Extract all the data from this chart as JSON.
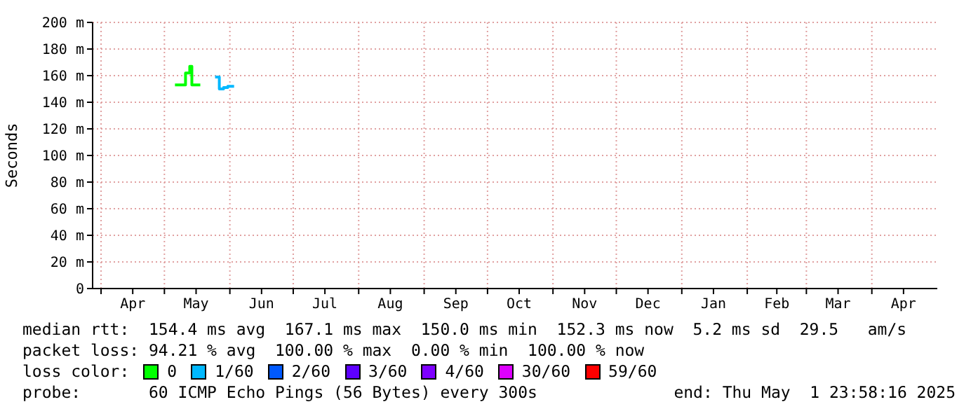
{
  "chart_data": {
    "type": "step",
    "ylabel": "Seconds",
    "x": [
      "2024-05-06",
      "2024-05-11",
      "2024-05-13",
      "2024-05-14",
      "2024-05-18",
      "2024-05-20",
      "2024-05-25",
      "2024-05-27",
      "2024-05-29",
      "2024-05-31",
      "2024-06-03"
    ],
    "series": [
      {
        "name": "0",
        "color": "#00ff00",
        "values": [
          153,
          162,
          167,
          153,
          153,
          null,
          null,
          null,
          null,
          null,
          null
        ]
      },
      {
        "name": "1/60",
        "color": "#00b8ff",
        "values": [
          null,
          null,
          null,
          null,
          null,
          null,
          159,
          150,
          151,
          152,
          152
        ]
      },
      {
        "name": "2/60",
        "color": "#0059ff",
        "values": [
          null,
          null,
          null,
          null,
          null,
          null,
          null,
          null,
          null,
          null,
          null
        ]
      },
      {
        "name": "3/60",
        "color": "#5e00ff",
        "values": [
          null,
          null,
          null,
          null,
          null,
          null,
          null,
          null,
          null,
          null,
          null
        ]
      },
      {
        "name": "4/60",
        "color": "#7e00ff",
        "values": [
          null,
          null,
          null,
          null,
          null,
          null,
          null,
          null,
          null,
          null,
          null
        ]
      },
      {
        "name": "30/60",
        "color": "#dd00ff",
        "values": [
          null,
          null,
          null,
          null,
          null,
          null,
          null,
          null,
          null,
          null,
          null
        ]
      },
      {
        "name": "59/60",
        "color": "#ff0000",
        "values": [
          null,
          null,
          null,
          null,
          null,
          null,
          null,
          null,
          null,
          null,
          null
        ]
      }
    ],
    "xlim": [
      "2024-03-28",
      "2025-05-01T23:58"
    ],
    "xticks": [
      {
        "value": "2024-04-01",
        "label": null
      },
      {
        "value": "2024-04-16",
        "label": "Apr"
      },
      {
        "value": "2024-05-01",
        "label": null
      },
      {
        "value": "2024-05-16",
        "label": "May"
      },
      {
        "value": "2024-06-01",
        "label": null
      },
      {
        "value": "2024-06-16",
        "label": "Jun"
      },
      {
        "value": "2024-07-01",
        "label": null
      },
      {
        "value": "2024-07-16",
        "label": "Jul"
      },
      {
        "value": "2024-08-01",
        "label": null
      },
      {
        "value": "2024-08-16",
        "label": "Aug"
      },
      {
        "value": "2024-09-01",
        "label": null
      },
      {
        "value": "2024-09-16",
        "label": "Sep"
      },
      {
        "value": "2024-10-01",
        "label": null
      },
      {
        "value": "2024-10-16",
        "label": "Oct"
      },
      {
        "value": "2024-11-01",
        "label": null
      },
      {
        "value": "2024-11-16",
        "label": "Nov"
      },
      {
        "value": "2024-12-01",
        "label": null
      },
      {
        "value": "2024-12-16",
        "label": "Dec"
      },
      {
        "value": "2025-01-01",
        "label": null
      },
      {
        "value": "2025-01-16",
        "label": "Jan"
      },
      {
        "value": "2025-02-01",
        "label": null
      },
      {
        "value": "2025-02-15",
        "label": "Feb"
      },
      {
        "value": "2025-03-01",
        "label": null
      },
      {
        "value": "2025-03-16",
        "label": "Mar"
      },
      {
        "value": "2025-04-01",
        "label": null
      },
      {
        "value": "2025-04-16",
        "label": "Apr"
      }
    ],
    "ylim": [
      0,
      200
    ],
    "yticks": [
      0,
      {
        "value": 20,
        "label": "20 m"
      },
      {
        "value": 40,
        "label": "40 m"
      },
      {
        "value": 60,
        "label": "60 m"
      },
      {
        "value": 80,
        "label": "80 m"
      },
      {
        "value": 100,
        "label": "100 m"
      },
      {
        "value": 120,
        "label": "120 m"
      },
      {
        "value": 140,
        "label": "140 m"
      },
      {
        "value": 160,
        "label": "160 m"
      },
      {
        "value": 180,
        "label": "180 m"
      },
      {
        "value": 200,
        "label": "200 m"
      }
    ],
    "grid": true,
    "legend": "bottom",
    "legend_title": "loss color:",
    "annotations": [
      "median rtt:  154.4 ms avg  167.1 ms max  150.0 ms min  152.3 ms now  5.2 ms sd  29.5   am/s",
      "packet loss: 94.21 % avg  100.00 % max  0.00 % min  100.00 % now",
      "probe:       60 ICMP Echo Pings (56 Bytes) every 300s",
      "end: Thu May  1 23:58:16 2025"
    ]
  }
}
